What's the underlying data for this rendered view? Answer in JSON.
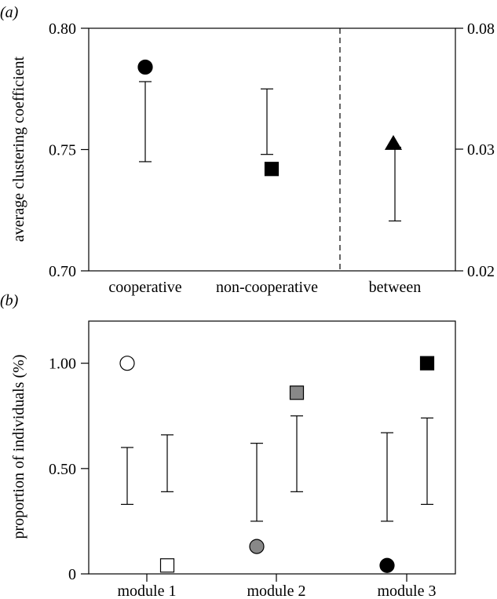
{
  "chart_data": [
    {
      "panel_label": "(a)",
      "type": "scatter",
      "ylabel": "average clustering coefficient",
      "categories": [
        "cooperative",
        "non-cooperative",
        "between"
      ],
      "ylim": [
        0.7,
        0.8
      ],
      "yticks": [
        "0.70",
        "0.75",
        "0.80"
      ],
      "y2lim": [
        0.02,
        0.08
      ],
      "y2ticks": [
        "0.02",
        "0.03",
        "0.08"
      ],
      "divider": "dashed vertical line between non-cooperative and between",
      "observed": [
        {
          "category": "cooperative",
          "axis": "left",
          "value": 0.784,
          "marker": "circle",
          "color": "#000000"
        },
        {
          "category": "non-cooperative",
          "axis": "left",
          "value": 0.742,
          "marker": "square",
          "color": "#000000"
        },
        {
          "category": "between",
          "axis": "right",
          "value": 0.0322,
          "marker": "triangle",
          "color": "#000000"
        }
      ],
      "null_ranges": [
        {
          "category": "cooperative",
          "axis": "left",
          "low": 0.745,
          "high": 0.778
        },
        {
          "category": "non-cooperative",
          "axis": "left",
          "low": 0.748,
          "high": 0.775
        },
        {
          "category": "between",
          "axis": "right",
          "low": 0.0241,
          "high": 0.0308
        }
      ]
    },
    {
      "panel_label": "(b)",
      "type": "scatter",
      "ylabel": "proportion of individuals (%)",
      "categories": [
        "module 1",
        "module 2",
        "module 3"
      ],
      "ylim": [
        0.0,
        1.2
      ],
      "yticks": [
        "0",
        "0.50",
        "1.00"
      ],
      "groups": [
        "cooperative",
        "non-cooperative"
      ],
      "observed": [
        {
          "category": "module 1",
          "group": "cooperative",
          "value": 1.0,
          "marker": "circle",
          "color": "#ffffff"
        },
        {
          "category": "module 1",
          "group": "non-cooperative",
          "value": 0.04,
          "marker": "square",
          "color": "#ffffff"
        },
        {
          "category": "module 2",
          "group": "cooperative",
          "value": 0.13,
          "marker": "circle",
          "color": "#888888"
        },
        {
          "category": "module 2",
          "group": "non-cooperative",
          "value": 0.86,
          "marker": "square",
          "color": "#888888"
        },
        {
          "category": "module 3",
          "group": "cooperative",
          "value": 0.04,
          "marker": "circle",
          "color": "#000000"
        },
        {
          "category": "module 3",
          "group": "non-cooperative",
          "value": 1.0,
          "marker": "square",
          "color": "#000000"
        }
      ],
      "null_ranges": [
        {
          "category": "module 1",
          "group": "cooperative",
          "low": 0.33,
          "high": 0.6
        },
        {
          "category": "module 1",
          "group": "non-cooperative",
          "low": 0.39,
          "high": 0.66
        },
        {
          "category": "module 2",
          "group": "cooperative",
          "low": 0.25,
          "high": 0.62
        },
        {
          "category": "module 2",
          "group": "non-cooperative",
          "low": 0.39,
          "high": 0.75
        },
        {
          "category": "module 3",
          "group": "cooperative",
          "low": 0.25,
          "high": 0.67
        },
        {
          "category": "module 3",
          "group": "non-cooperative",
          "low": 0.33,
          "high": 0.74
        }
      ]
    }
  ]
}
